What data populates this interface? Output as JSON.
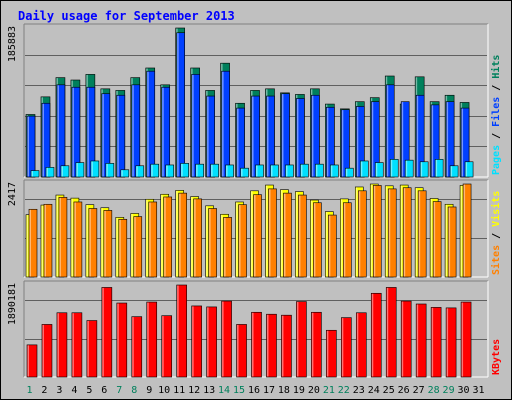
{
  "chart_data": {
    "type": "bar",
    "title": "Daily usage for September 2013",
    "x": [
      1,
      2,
      3,
      4,
      5,
      6,
      7,
      8,
      9,
      10,
      11,
      12,
      13,
      14,
      15,
      16,
      17,
      18,
      19,
      20,
      21,
      22,
      23,
      24,
      25,
      26,
      27,
      28,
      29,
      30,
      31
    ],
    "weekend_days": [
      1,
      7,
      8,
      14,
      15,
      21,
      22,
      28,
      29
    ],
    "panels": [
      {
        "id": "hits-files-pages",
        "max_label": "185883",
        "ymax": 185883,
        "series": [
          {
            "name": "Hits",
            "color": "#00805c",
            "values": [
              78000,
              100000,
              124000,
              121000,
              128000,
              110000,
              108000,
              124000,
              136000,
              115000,
              185883,
              136000,
              108000,
              142000,
              92000,
              108000,
              110000,
              105000,
              103000,
              110000,
              91000,
              85000,
              94000,
              99000,
              126000,
              91000,
              125000,
              94000,
              102000,
              93000,
              null
            ]
          },
          {
            "name": "Files",
            "color": "#0040ff",
            "values": [
              76000,
              92000,
              115000,
              112000,
              112000,
              104000,
              102000,
              115000,
              132000,
              112000,
              180000,
              128000,
              101000,
              132000,
              86000,
              101000,
              101000,
              104000,
              98000,
              102000,
              87000,
              84000,
              88000,
              94000,
              115000,
              94000,
              102000,
              90000,
              94000,
              86000,
              null
            ]
          },
          {
            "name": "Pages",
            "color": "#00e0ff",
            "values": [
              8000,
              12000,
              14000,
              18000,
              20000,
              17000,
              9000,
              14000,
              16000,
              15000,
              17000,
              16000,
              16000,
              15000,
              11000,
              15000,
              15000,
              15000,
              16000,
              16000,
              15000,
              11000,
              20000,
              18000,
              22000,
              21000,
              19000,
              22000,
              14000,
              19000,
              null
            ]
          }
        ]
      },
      {
        "id": "visits-sites",
        "max_label": "2417",
        "ymax": 2417,
        "series": [
          {
            "name": "Visits",
            "color": "#ffff00",
            "values": [
              1620,
              1870,
              2130,
              2050,
              1880,
              1800,
              1550,
              1650,
              2020,
              2150,
              2250,
              2090,
              1850,
              1630,
              1950,
              2240,
              2390,
              2270,
              2220,
              2000,
              1700,
              2030,
              2340,
              2417,
              2370,
              2390,
              2320,
              2040,
              1890,
              2380,
              null
            ]
          },
          {
            "name": "Sites",
            "color": "#ff8000",
            "values": [
              1760,
              1890,
              2070,
              1950,
              1780,
              1730,
              1500,
              1570,
              1950,
              2080,
              2180,
              2030,
              1780,
              1550,
              1880,
              2140,
              2290,
              2180,
              2130,
              1930,
              1610,
              1930,
              2240,
              2380,
              2290,
              2320,
              2240,
              1960,
              1820,
              2417,
              null
            ]
          }
        ]
      },
      {
        "id": "kbytes",
        "max_label": "1890181",
        "ymax": 1890181,
        "series": [
          {
            "name": "KBytes",
            "color": "#ff0000",
            "values": [
              660000,
              1080000,
              1320000,
              1320000,
              1160000,
              1840000,
              1520000,
              1240000,
              1540000,
              1260000,
              1890181,
              1460000,
              1440000,
              1560000,
              1080000,
              1330000,
              1290000,
              1270000,
              1550000,
              1330000,
              960000,
              1220000,
              1320000,
              1720000,
              1840000,
              1560000,
              1500000,
              1430000,
              1420000,
              1540000,
              null
            ]
          }
        ]
      }
    ]
  }
}
